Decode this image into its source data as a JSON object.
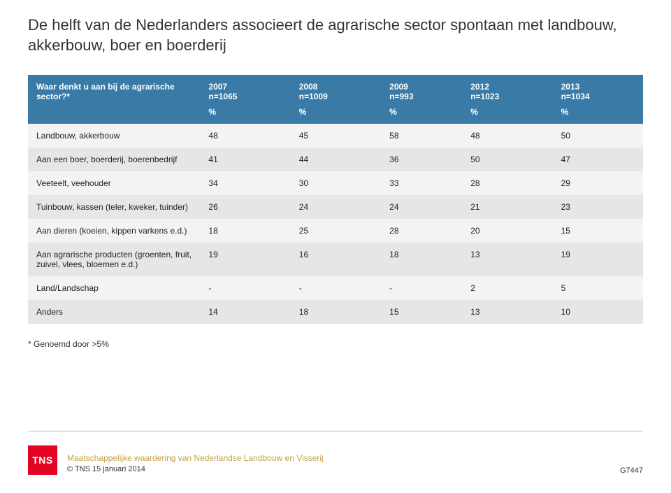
{
  "title": "De helft van de Nederlanders associeert de agrarische sector spontaan met landbouw, akkerbouw, boer en boerderij",
  "question": "Waar denkt u aan bij de agrarische sector?*",
  "columns": [
    {
      "year": "2007",
      "n": "n=1065"
    },
    {
      "year": "2008",
      "n": "n=1009"
    },
    {
      "year": "2009",
      "n": "n=993"
    },
    {
      "year": "2012",
      "n": "n=1023"
    },
    {
      "year": "2013",
      "n": "n=1034"
    }
  ],
  "unit": "%",
  "rows": [
    {
      "label": "Landbouw, akkerbouw",
      "v": [
        "48",
        "45",
        "58",
        "48",
        "50"
      ]
    },
    {
      "label": "Aan een boer, boerderij, boerenbedrijf",
      "v": [
        "41",
        "44",
        "36",
        "50",
        "47"
      ]
    },
    {
      "label": "Veeteelt, veehouder",
      "v": [
        "34",
        "30",
        "33",
        "28",
        "29"
      ]
    },
    {
      "label": "Tuinbouw, kassen (teler, kweker, tuinder)",
      "v": [
        "26",
        "24",
        "24",
        "21",
        "23"
      ]
    },
    {
      "label": "Aan dieren (koeien, kippen varkens e.d.)",
      "v": [
        "18",
        "25",
        "28",
        "20",
        "15"
      ]
    },
    {
      "label": "Aan agrarische producten (groenten, fruit, zuivel, vlees, bloemen e.d.)",
      "v": [
        "19",
        "16",
        "18",
        "13",
        "19"
      ]
    },
    {
      "label": "Land/Landschap",
      "v": [
        "-",
        "-",
        "-",
        "2",
        "5"
      ]
    },
    {
      "label": "Anders",
      "v": [
        "14",
        "18",
        "15",
        "13",
        "10"
      ]
    }
  ],
  "footnote": "* Genoemd door >5%",
  "footer": {
    "logo": "TNS",
    "title": "Maatschappelijke waardering van Nederlandse Landbouw en Visserij",
    "copyright": "© TNS   15 januari 2014",
    "code": "G7447"
  },
  "style": {
    "header_bg": "#3a7aa6",
    "header_fg": "#ffffff",
    "row_odd": "#f3f3f3",
    "row_even": "#e6e6e6",
    "logo_bg": "#e30423",
    "footer_title_color": "#c59f4a",
    "title_fontsize": 22,
    "body_fontsize": 12
  }
}
